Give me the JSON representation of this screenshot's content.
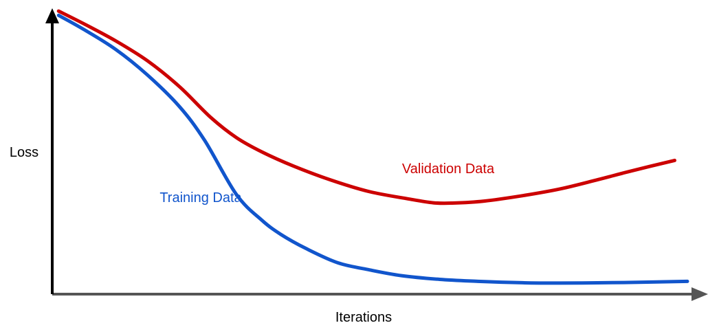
{
  "chart_data": {
    "type": "line",
    "title": "",
    "xlabel": "Iterations",
    "ylabel": "Loss",
    "xlim": [
      0,
      100
    ],
    "ylim": [
      0,
      100
    ],
    "grid": false,
    "series": [
      {
        "name": "Training Data",
        "color": "#1155CC",
        "x": [
          1,
          5,
          10,
          15,
          20,
          24,
          29,
          33,
          36,
          40,
          45,
          50,
          55,
          61,
          67,
          74,
          80,
          87,
          93,
          100
        ],
        "values": [
          98,
          93,
          86,
          77,
          66,
          54,
          35,
          26,
          21,
          16,
          11,
          8.5,
          6.5,
          5.2,
          4.5,
          4.0,
          3.9,
          4.0,
          4.2,
          4.5
        ]
      },
      {
        "name": "Validation Data",
        "color": "#CC0000",
        "x": [
          1,
          5,
          10,
          15,
          20,
          25,
          29,
          33,
          38,
          44,
          50,
          56,
          60,
          63,
          68,
          74,
          80,
          86,
          91,
          98
        ],
        "values": [
          99.5,
          95,
          89,
          82,
          73,
          62,
          55,
          50,
          45,
          40,
          36,
          33.5,
          32.1,
          32.0,
          32.7,
          34.6,
          37.0,
          40.3,
          43.2,
          47
        ]
      }
    ],
    "annotations": [
      {
        "text": "Training Data",
        "series": "Training Data"
      },
      {
        "text": "Validation Data",
        "series": "Validation Data"
      }
    ],
    "axis_color": "#555555",
    "label_color": "#000000"
  }
}
